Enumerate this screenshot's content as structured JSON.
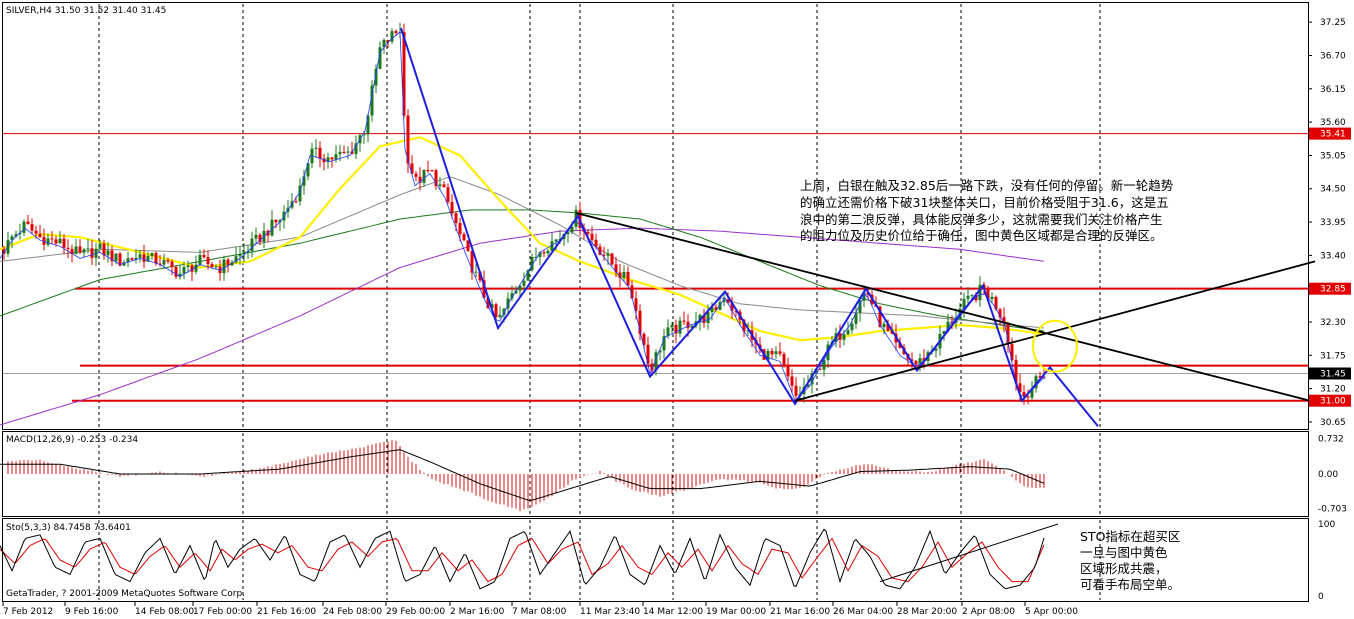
{
  "chart_data": {
    "type": "candlestick",
    "symbol_header": "SILVER,H4  31.50 31.52 31.40 31.45",
    "y_ticks": [
      "37.25",
      "36.70",
      "36.15",
      "35.60",
      "35.05",
      "34.50",
      "33.95",
      "33.40",
      "32.30",
      "31.75",
      "31.20",
      "30.65"
    ],
    "ylim": [
      30.55,
      37.55
    ],
    "price_tags": [
      {
        "label": "35.41",
        "value": 35.41,
        "bg": "#e00000"
      },
      {
        "label": "32.85",
        "value": 32.85,
        "bg": "#e00000"
      },
      {
        "label": "31.45",
        "value": 31.45,
        "bg": "#000000"
      },
      {
        "label": "31.00",
        "value": 31.0,
        "bg": "#e00000"
      }
    ],
    "x_labels": [
      "7 Feb 2012",
      "9 Feb 16:00",
      "14 Feb 08:00",
      "17 Feb 00:00",
      "21 Feb 16:00",
      "24 Feb 08:00",
      "29 Feb 00:00",
      "2 Mar 16:00",
      "7 Mar 08:00",
      "11 Mar 23:40",
      "14 Mar 12:00",
      "19 Mar 00:00",
      "21 Mar 16:00",
      "26 Mar 04:00",
      "28 Mar 20:00",
      "2 Apr 08:00",
      "5 Apr 00:00"
    ],
    "price_anchors": [
      [
        0,
        33.4
      ],
      [
        12,
        33.7
      ],
      [
        25,
        33.9
      ],
      [
        40,
        33.7
      ],
      [
        60,
        33.6
      ],
      [
        80,
        33.4
      ],
      [
        100,
        33.5
      ],
      [
        120,
        33.3
      ],
      [
        140,
        33.4
      ],
      [
        160,
        33.3
      ],
      [
        180,
        33.1
      ],
      [
        200,
        33.3
      ],
      [
        220,
        33.2
      ],
      [
        240,
        33.4
      ],
      [
        260,
        33.7
      ],
      [
        280,
        34.0
      ],
      [
        300,
        34.5
      ],
      [
        310,
        35.1
      ],
      [
        330,
        35.0
      ],
      [
        350,
        35.1
      ],
      [
        365,
        35.5
      ],
      [
        380,
        36.8
      ],
      [
        390,
        37.0
      ],
      [
        401,
        37.15
      ],
      [
        405,
        35.2
      ],
      [
        415,
        34.6
      ],
      [
        430,
        34.8
      ],
      [
        445,
        34.4
      ],
      [
        465,
        33.5
      ],
      [
        485,
        32.7
      ],
      [
        498,
        32.3
      ],
      [
        510,
        32.7
      ],
      [
        525,
        33.1
      ],
      [
        540,
        33.5
      ],
      [
        560,
        33.7
      ],
      [
        576,
        34.05
      ],
      [
        590,
        33.7
      ],
      [
        610,
        33.3
      ],
      [
        630,
        32.9
      ],
      [
        650,
        31.5
      ],
      [
        665,
        32.1
      ],
      [
        690,
        32.3
      ],
      [
        710,
        32.4
      ],
      [
        725,
        32.75
      ],
      [
        740,
        32.3
      ],
      [
        760,
        31.8
      ],
      [
        780,
        31.7
      ],
      [
        795,
        31.05
      ],
      [
        810,
        31.3
      ],
      [
        830,
        31.9
      ],
      [
        850,
        32.3
      ],
      [
        866,
        32.85
      ],
      [
        880,
        32.3
      ],
      [
        900,
        31.8
      ],
      [
        917,
        31.6
      ],
      [
        935,
        31.9
      ],
      [
        950,
        32.3
      ],
      [
        965,
        32.6
      ],
      [
        983,
        32.85
      ],
      [
        995,
        32.6
      ],
      [
        1005,
        32.3
      ],
      [
        1015,
        31.4
      ],
      [
        1022,
        31.05
      ],
      [
        1030,
        31.2
      ],
      [
        1045,
        31.45
      ]
    ],
    "ma_yellow": [
      [
        0,
        33.5
      ],
      [
        40,
        33.75
      ],
      [
        80,
        33.7
      ],
      [
        140,
        33.45
      ],
      [
        200,
        33.2
      ],
      [
        250,
        33.3
      ],
      [
        300,
        33.7
      ],
      [
        340,
        34.5
      ],
      [
        380,
        35.2
      ],
      [
        420,
        35.35
      ],
      [
        460,
        35.05
      ],
      [
        500,
        34.3
      ],
      [
        540,
        33.6
      ],
      [
        580,
        33.3
      ],
      [
        630,
        33.0
      ],
      [
        680,
        32.75
      ],
      [
        720,
        32.45
      ],
      [
        760,
        32.15
      ],
      [
        800,
        32.0
      ],
      [
        840,
        32.05
      ],
      [
        880,
        32.15
      ],
      [
        920,
        32.2
      ],
      [
        960,
        32.25
      ],
      [
        1000,
        32.2
      ],
      [
        1045,
        32.1
      ]
    ],
    "ma_gray": [
      [
        0,
        33.3
      ],
      [
        100,
        33.5
      ],
      [
        200,
        33.45
      ],
      [
        300,
        33.7
      ],
      [
        400,
        34.4
      ],
      [
        450,
        34.7
      ],
      [
        500,
        34.4
      ],
      [
        560,
        33.9
      ],
      [
        620,
        33.3
      ],
      [
        680,
        32.9
      ],
      [
        740,
        32.6
      ],
      [
        800,
        32.5
      ],
      [
        860,
        32.45
      ],
      [
        920,
        32.4
      ],
      [
        980,
        32.3
      ],
      [
        1045,
        32.2
      ]
    ],
    "ma_green": [
      [
        0,
        32.4
      ],
      [
        100,
        33.0
      ],
      [
        200,
        33.3
      ],
      [
        300,
        33.6
      ],
      [
        400,
        34.0
      ],
      [
        470,
        34.15
      ],
      [
        530,
        34.15
      ],
      [
        580,
        34.1
      ],
      [
        640,
        34.0
      ],
      [
        700,
        33.7
      ],
      [
        760,
        33.3
      ],
      [
        820,
        32.9
      ],
      [
        880,
        32.6
      ],
      [
        940,
        32.4
      ],
      [
        1000,
        32.25
      ],
      [
        1045,
        32.15
      ]
    ],
    "ma_purple": [
      [
        0,
        30.6
      ],
      [
        100,
        31.1
      ],
      [
        200,
        31.7
      ],
      [
        300,
        32.4
      ],
      [
        400,
        33.2
      ],
      [
        480,
        33.6
      ],
      [
        560,
        33.8
      ],
      [
        640,
        33.85
      ],
      [
        720,
        33.8
      ],
      [
        800,
        33.7
      ],
      [
        880,
        33.6
      ],
      [
        960,
        33.5
      ],
      [
        1045,
        33.3
      ]
    ],
    "zigzag": [
      [
        401,
        37.15
      ],
      [
        498,
        32.2
      ],
      [
        578,
        34.05
      ],
      [
        650,
        31.4
      ],
      [
        725,
        32.8
      ],
      [
        795,
        30.95
      ],
      [
        866,
        32.85
      ],
      [
        917,
        31.5
      ],
      [
        983,
        32.9
      ],
      [
        1022,
        31.0
      ],
      [
        1050,
        31.55
      ],
      [
        1098,
        30.58
      ]
    ],
    "resistance_lines": [
      32.85,
      31.58,
      31.0
    ],
    "resistance_line_35": 35.41,
    "trendlines": [
      {
        "from": [
          576,
          34.1
        ],
        "to": [
          1315,
          30.98
        ]
      },
      {
        "from": [
          795,
          31.0
        ],
        "to": [
          1315,
          33.3
        ]
      }
    ],
    "ellipse": {
      "cx": 1055,
      "cy": 31.9,
      "rx": 22,
      "ry": 0.42
    },
    "annotation_main": [
      "上周，白银在触及32.85后一路下跌，没有任何的停留。新一轮趋势",
      "的确立还需价格下破31块整体关口，目前价格受阻于31.6，这是五",
      "浪中的第二浪反弹，具体能反弹多少，这就需要我们关注价格产生",
      "的阻力位及历史价位给于确任，图中黄色区域都是合理的反弹区。"
    ],
    "macd": {
      "header": "MACD(12,26,9) -0.253 -0.234",
      "y_ticks": [
        "0.732",
        "0.00",
        "-0.703"
      ],
      "ylim": [
        -0.82,
        0.82
      ],
      "hist_anchors": [
        [
          0,
          0.25
        ],
        [
          40,
          0.28
        ],
        [
          80,
          0.1
        ],
        [
          120,
          -0.05
        ],
        [
          160,
          0.05
        ],
        [
          200,
          -0.05
        ],
        [
          240,
          0.05
        ],
        [
          280,
          0.2
        ],
        [
          320,
          0.4
        ],
        [
          360,
          0.55
        ],
        [
          395,
          0.7
        ],
        [
          410,
          0.3
        ],
        [
          430,
          -0.1
        ],
        [
          460,
          -0.3
        ],
        [
          490,
          -0.55
        ],
        [
          520,
          -0.75
        ],
        [
          545,
          -0.55
        ],
        [
          575,
          -0.1
        ],
        [
          600,
          0.05
        ],
        [
          630,
          -0.3
        ],
        [
          660,
          -0.45
        ],
        [
          690,
          -0.3
        ],
        [
          720,
          -0.1
        ],
        [
          750,
          -0.15
        ],
        [
          780,
          -0.3
        ],
        [
          800,
          -0.3
        ],
        [
          820,
          -0.05
        ],
        [
          850,
          0.15
        ],
        [
          870,
          0.2
        ],
        [
          900,
          0.05
        ],
        [
          930,
          0.05
        ],
        [
          960,
          0.2
        ],
        [
          985,
          0.3
        ],
        [
          1005,
          0.05
        ],
        [
          1025,
          -0.25
        ],
        [
          1045,
          -0.3
        ]
      ],
      "signal_anchors": [
        [
          0,
          0.2
        ],
        [
          60,
          0.2
        ],
        [
          120,
          0.0
        ],
        [
          200,
          0.0
        ],
        [
          280,
          0.1
        ],
        [
          350,
          0.35
        ],
        [
          400,
          0.5
        ],
        [
          430,
          0.25
        ],
        [
          480,
          -0.2
        ],
        [
          530,
          -0.55
        ],
        [
          570,
          -0.3
        ],
        [
          610,
          -0.05
        ],
        [
          650,
          -0.3
        ],
        [
          700,
          -0.3
        ],
        [
          760,
          -0.15
        ],
        [
          810,
          -0.25
        ],
        [
          860,
          0.05
        ],
        [
          910,
          0.08
        ],
        [
          970,
          0.15
        ],
        [
          1010,
          0.1
        ],
        [
          1045,
          -0.2
        ]
      ]
    },
    "sto": {
      "header": "Sto(5,3,3) 84.7458 73.6401",
      "y_ticks": [
        "100",
        "0"
      ],
      "ylim": [
        0,
        100
      ],
      "main_anchors": [
        [
          0,
          70
        ],
        [
          12,
          35
        ],
        [
          25,
          80
        ],
        [
          40,
          85
        ],
        [
          55,
          40
        ],
        [
          70,
          30
        ],
        [
          85,
          75
        ],
        [
          100,
          80
        ],
        [
          115,
          30
        ],
        [
          130,
          20
        ],
        [
          145,
          60
        ],
        [
          160,
          80
        ],
        [
          175,
          30
        ],
        [
          190,
          70
        ],
        [
          205,
          20
        ],
        [
          215,
          80
        ],
        [
          228,
          40
        ],
        [
          240,
          65
        ],
        [
          255,
          80
        ],
        [
          270,
          50
        ],
        [
          285,
          85
        ],
        [
          300,
          30
        ],
        [
          315,
          20
        ],
        [
          330,
          75
        ],
        [
          345,
          85
        ],
        [
          360,
          40
        ],
        [
          375,
          80
        ],
        [
          390,
          90
        ],
        [
          405,
          20
        ],
        [
          420,
          30
        ],
        [
          435,
          70
        ],
        [
          450,
          20
        ],
        [
          465,
          60
        ],
        [
          480,
          10
        ],
        [
          495,
          20
        ],
        [
          510,
          80
        ],
        [
          525,
          90
        ],
        [
          540,
          30
        ],
        [
          555,
          60
        ],
        [
          570,
          90
        ],
        [
          585,
          15
        ],
        [
          600,
          40
        ],
        [
          615,
          85
        ],
        [
          630,
          30
        ],
        [
          645,
          15
        ],
        [
          660,
          70
        ],
        [
          675,
          30
        ],
        [
          690,
          80
        ],
        [
          705,
          20
        ],
        [
          720,
          85
        ],
        [
          735,
          40
        ],
        [
          750,
          15
        ],
        [
          765,
          80
        ],
        [
          780,
          70
        ],
        [
          795,
          10
        ],
        [
          810,
          60
        ],
        [
          825,
          95
        ],
        [
          840,
          20
        ],
        [
          855,
          80
        ],
        [
          870,
          55
        ],
        [
          885,
          15
        ],
        [
          900,
          10
        ],
        [
          915,
          40
        ],
        [
          930,
          90
        ],
        [
          945,
          30
        ],
        [
          960,
          60
        ],
        [
          975,
          85
        ],
        [
          990,
          30
        ],
        [
          1005,
          10
        ],
        [
          1020,
          15
        ],
        [
          1035,
          40
        ],
        [
          1045,
          85
        ]
      ],
      "signal_anchors": [
        [
          0,
          65
        ],
        [
          15,
          45
        ],
        [
          30,
          70
        ],
        [
          45,
          80
        ],
        [
          60,
          50
        ],
        [
          75,
          40
        ],
        [
          90,
          65
        ],
        [
          105,
          75
        ],
        [
          120,
          40
        ],
        [
          135,
          30
        ],
        [
          150,
          55
        ],
        [
          165,
          70
        ],
        [
          180,
          40
        ],
        [
          195,
          60
        ],
        [
          210,
          35
        ],
        [
          222,
          65
        ],
        [
          235,
          50
        ],
        [
          248,
          65
        ],
        [
          262,
          72
        ],
        [
          278,
          60
        ],
        [
          292,
          70
        ],
        [
          308,
          40
        ],
        [
          322,
          35
        ],
        [
          338,
          65
        ],
        [
          352,
          75
        ],
        [
          368,
          55
        ],
        [
          382,
          75
        ],
        [
          397,
          80
        ],
        [
          412,
          35
        ],
        [
          428,
          35
        ],
        [
          442,
          60
        ],
        [
          458,
          35
        ],
        [
          472,
          50
        ],
        [
          488,
          20
        ],
        [
          502,
          30
        ],
        [
          518,
          70
        ],
        [
          532,
          80
        ],
        [
          548,
          45
        ],
        [
          562,
          65
        ],
        [
          578,
          75
        ],
        [
          592,
          30
        ],
        [
          608,
          45
        ],
        [
          622,
          70
        ],
        [
          638,
          40
        ],
        [
          652,
          30
        ],
        [
          668,
          60
        ],
        [
          682,
          40
        ],
        [
          698,
          65
        ],
        [
          712,
          35
        ],
        [
          728,
          70
        ],
        [
          742,
          45
        ],
        [
          758,
          30
        ],
        [
          772,
          65
        ],
        [
          788,
          60
        ],
        [
          802,
          25
        ],
        [
          818,
          55
        ],
        [
          832,
          80
        ],
        [
          848,
          35
        ],
        [
          862,
          70
        ],
        [
          878,
          55
        ],
        [
          892,
          25
        ],
        [
          908,
          20
        ],
        [
          922,
          40
        ],
        [
          938,
          75
        ],
        [
          952,
          40
        ],
        [
          968,
          60
        ],
        [
          982,
          75
        ],
        [
          998,
          40
        ],
        [
          1012,
          20
        ],
        [
          1028,
          20
        ],
        [
          1045,
          74
        ]
      ],
      "trendline": {
        "from": [
          880,
          20
        ],
        "to": [
          1058,
          100
        ]
      },
      "copyright": "GetaTrader, ? 2001-2009 MetaQuotes Software Corp.",
      "annotation": [
        "STO指标在超买区",
        "一旦与图中黄色",
        "区域形成共震，",
        "可看手布局空单。"
      ]
    }
  }
}
